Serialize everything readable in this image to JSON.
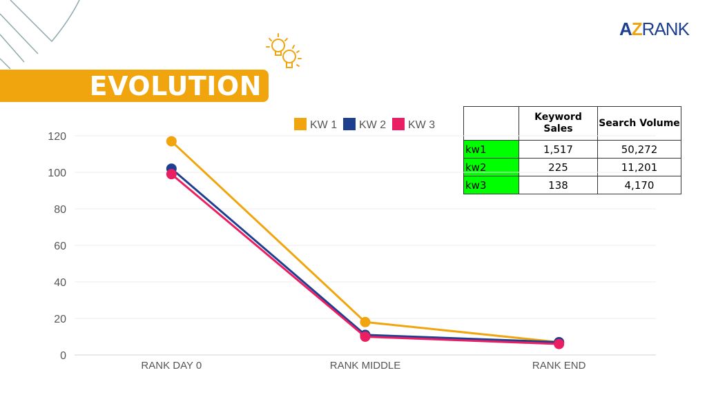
{
  "title": "EVOLUTION",
  "logo": {
    "part1": "A",
    "part2": "Z",
    "part3": "RANK"
  },
  "table": {
    "headers": [
      "",
      "Keyword Sales",
      "Search Volume"
    ],
    "rows": [
      {
        "kw": "kw1",
        "sales": "1,517",
        "volume": "50,272"
      },
      {
        "kw": "kw2",
        "sales": "225",
        "volume": "11,201"
      },
      {
        "kw": "kw3",
        "sales": "138",
        "volume": "4,170"
      }
    ]
  },
  "chart_data": {
    "type": "line",
    "title": "",
    "xlabel": "",
    "ylabel": "",
    "categories": [
      "RANK DAY 0",
      "RANK MIDDLE",
      "RANK END"
    ],
    "ylim": [
      0,
      120
    ],
    "yticks": [
      0,
      20,
      40,
      60,
      80,
      100,
      120
    ],
    "grid": true,
    "legend": "top-center",
    "series": [
      {
        "name": "KW 1",
        "color": "#f0a50f",
        "values": [
          117,
          18,
          7
        ]
      },
      {
        "name": "KW 2",
        "color": "#1d3f8f",
        "values": [
          102,
          11,
          7
        ]
      },
      {
        "name": "KW 3",
        "color": "#e91e63",
        "values": [
          99,
          10,
          6
        ]
      }
    ]
  }
}
